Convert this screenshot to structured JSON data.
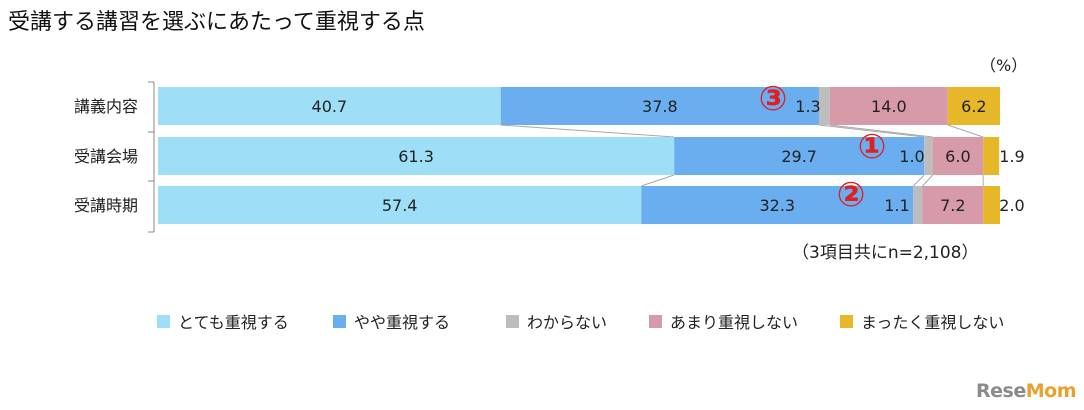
{
  "title": "受講する講習を選ぶにあたって重視する点",
  "unit_label": "（%）",
  "note": "（3項目共にn=2,108）",
  "logo": {
    "text_a": "Rese",
    "text_b": "Mom"
  },
  "colors": {
    "very": "#9edff7",
    "some": "#6aaeef",
    "unknown": "#bdbdbd",
    "not_much": "#d79aa8",
    "not_at_all": "#e6b829",
    "connector": "#a8a8a8",
    "circle_number": "#e01f1f"
  },
  "chart_data": {
    "type": "bar",
    "orientation": "horizontal",
    "stacked": "100%",
    "categories": [
      "講義内容",
      "受講会場",
      "受講時期"
    ],
    "series": [
      {
        "name": "とても重視する",
        "values": [
          40.7,
          61.3,
          57.4
        ]
      },
      {
        "name": "やや重視する",
        "values": [
          37.8,
          29.7,
          32.3
        ]
      },
      {
        "name": "わからない",
        "values": [
          1.3,
          1.0,
          1.1
        ]
      },
      {
        "name": "あまり重視しない",
        "values": [
          14.0,
          6.0,
          7.2
        ]
      },
      {
        "name": "まったく重視しない",
        "values": [
          6.2,
          1.9,
          2.0
        ]
      }
    ],
    "data_labels": [
      [
        "40.7",
        "37.8",
        "1.3",
        "14.0",
        "6.2"
      ],
      [
        "61.3",
        "29.7",
        "1.0",
        "6.0",
        "1.9"
      ],
      [
        "57.4",
        "32.3",
        "1.1",
        "7.2",
        "2.0"
      ]
    ],
    "rank_annotations": [
      "③",
      "①",
      "②"
    ],
    "xlim": [
      0,
      100
    ],
    "legend_position": "bottom"
  }
}
